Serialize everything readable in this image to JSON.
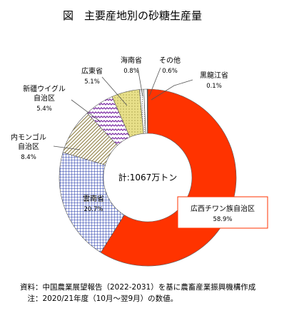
{
  "chart_data": {
    "type": "pie",
    "title": "図　主要産地別の砂糖生産量",
    "center_label": "計:1067万トン",
    "slices": [
      {
        "name_lines": [
          "広西チワン族自治区"
        ],
        "pct_label": "58.9%",
        "value": 58.9,
        "color": "#ff3300",
        "pattern": "solid"
      },
      {
        "name_lines": [
          "雲南省"
        ],
        "pct_label": "20.7%",
        "value": 20.7,
        "color": "#1f35a8",
        "pattern": "grid"
      },
      {
        "name_lines": [
          "内モンゴル",
          "自治区"
        ],
        "pct_label": "8.4%",
        "value": 8.4,
        "color": "#8a7a3c",
        "pattern": "diagonal"
      },
      {
        "name_lines": [
          "新疆ウイグル",
          "自治区"
        ],
        "pct_label": "5.4%",
        "value": 5.4,
        "color": "#7b2ba3",
        "pattern": "zigzag"
      },
      {
        "name_lines": [
          "広東省"
        ],
        "pct_label": "5.1%",
        "value": 5.1,
        "color": "#e8e08a",
        "pattern": "dots"
      },
      {
        "name_lines": [
          "海南省"
        ],
        "pct_label": "0.8%",
        "value": 0.8,
        "color": "#c8c8c8",
        "pattern": "light"
      },
      {
        "name_lines": [
          "その他"
        ],
        "pct_label": "0.6%",
        "value": 0.6,
        "color": "#ffffff",
        "pattern": "solid"
      },
      {
        "name_lines": [
          "黒龍江省"
        ],
        "pct_label": "0.1%",
        "value": 0.1,
        "color": "#333333",
        "pattern": "solid"
      }
    ],
    "start_angle_deg": 0,
    "direction": "clockwise-order-reversed"
  },
  "source_line1": "資料：中国農業展望報告（2022-2031）を基に農畜産業振興機構作成",
  "source_line2": "　注：2020/21年度（10月～翌9月）の数値。"
}
